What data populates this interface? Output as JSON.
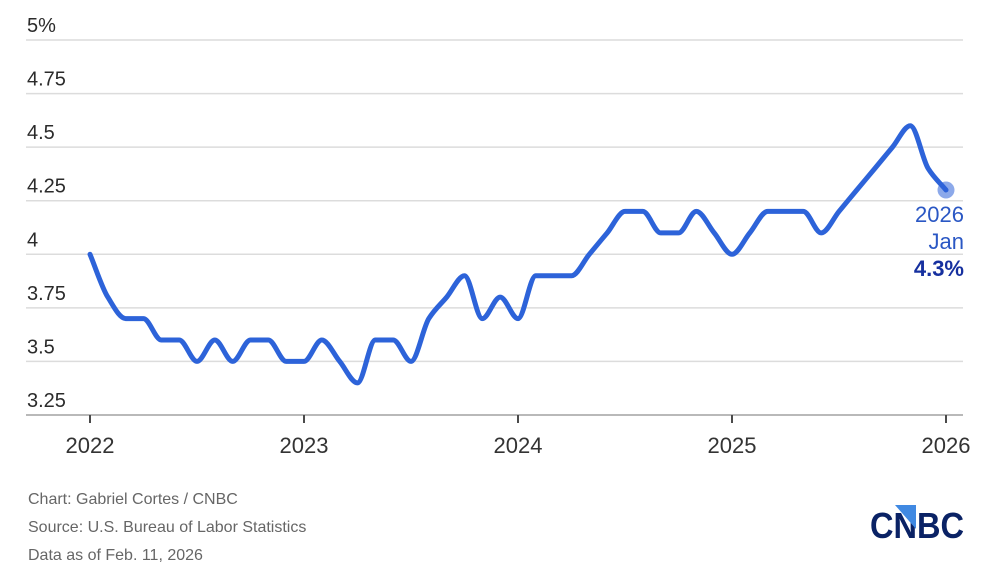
{
  "chart_data": {
    "type": "line",
    "title": "",
    "xlabel": "",
    "ylabel": "",
    "unit": "%",
    "months": [
      "2022-01",
      "2022-02",
      "2022-03",
      "2022-04",
      "2022-05",
      "2022-06",
      "2022-07",
      "2022-08",
      "2022-09",
      "2022-10",
      "2022-11",
      "2022-12",
      "2023-01",
      "2023-02",
      "2023-03",
      "2023-04",
      "2023-05",
      "2023-06",
      "2023-07",
      "2023-08",
      "2023-09",
      "2023-10",
      "2023-11",
      "2023-12",
      "2024-01",
      "2024-02",
      "2024-03",
      "2024-04",
      "2024-05",
      "2024-06",
      "2024-07",
      "2024-08",
      "2024-09",
      "2024-10",
      "2024-11",
      "2024-12",
      "2025-01",
      "2025-02",
      "2025-03",
      "2025-04",
      "2025-05",
      "2025-06",
      "2025-07",
      "2025-08",
      "2025-09",
      "2025-10",
      "2025-11",
      "2025-12",
      "2026-01"
    ],
    "values": [
      4.0,
      3.8,
      3.7,
      3.7,
      3.6,
      3.6,
      3.5,
      3.6,
      3.5,
      3.6,
      3.6,
      3.5,
      3.5,
      3.6,
      3.5,
      3.4,
      3.6,
      3.6,
      3.5,
      3.7,
      3.8,
      3.9,
      3.7,
      3.8,
      3.7,
      3.9,
      3.9,
      3.9,
      4.0,
      4.1,
      4.2,
      4.2,
      4.1,
      4.1,
      4.2,
      4.1,
      4.0,
      4.1,
      4.2,
      4.2,
      4.2,
      4.1,
      4.2,
      4.3,
      4.4,
      4.5,
      4.6,
      4.4,
      4.3
    ],
    "ylim": [
      3.25,
      5.0
    ],
    "y_ticks": [
      5,
      4.75,
      4.5,
      4.25,
      4,
      3.75,
      3.5,
      3.25
    ],
    "y_tick_labels": [
      "5%",
      "4.75",
      "4.5",
      "4.25",
      "4",
      "3.75",
      "3.5",
      "3.25"
    ],
    "x_tick_labels": [
      "2022",
      "2023",
      "2024",
      "2025",
      "2026"
    ],
    "grid": true,
    "legend": "none",
    "line_color": "#2d63d9",
    "dot_color": "#2d63d9",
    "dot_opacity": 0.55
  },
  "annotation": {
    "year": "2026",
    "month": "Jan",
    "value": "4.3%"
  },
  "footer": {
    "credit": "Chart: Gabriel Cortes / CNBC",
    "source": "Source: U.S. Bureau of Labor Statistics",
    "as_of": "Data as of Feb. 11, 2026"
  },
  "logo": {
    "text": "CNBC",
    "navy": "#0a2265",
    "triangle_blue": "#4089e2"
  },
  "colors": {
    "gridline": "#dcdcdc",
    "axis_line": "#b9b9b9",
    "tick": "#4a4a4a",
    "y_label": "#2b2b2b",
    "x_label": "#333333",
    "footer_text": "#666666",
    "annotation_blue": "#2a57c4",
    "annotation_value_navy": "#16309f"
  }
}
